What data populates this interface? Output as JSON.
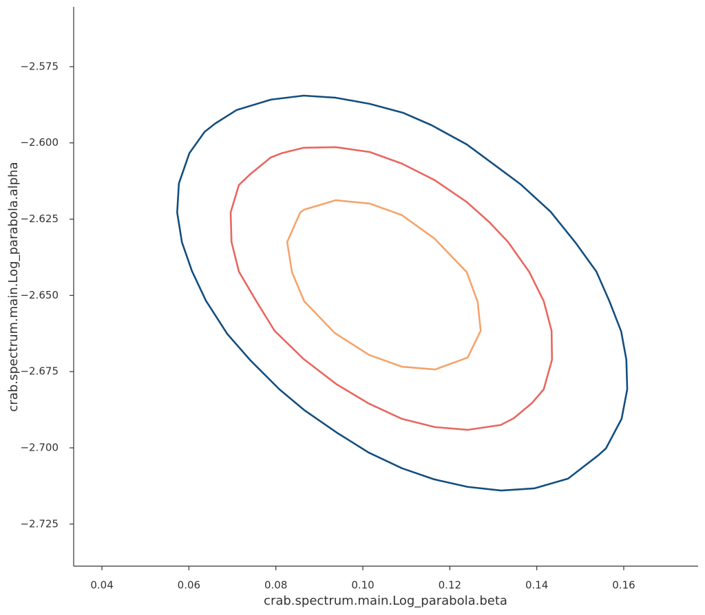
{
  "chart_data": {
    "type": "line",
    "xlabel": "crab.spectrum.main.Log_parabola.beta",
    "ylabel": "crab.spectrum.main.Log_parabola.alpha",
    "xlim": [
      0.0335,
      0.1771
    ],
    "ylim": [
      -2.7388,
      -2.5554
    ],
    "xticks": [
      0.04,
      0.06,
      0.08,
      {
        "value": 0.1,
        "label": "0.10"
      },
      0.12,
      0.14,
      0.16
    ],
    "yticks": [
      {
        "value": -2.725,
        "label": "−2.725"
      },
      {
        "value": -2.7,
        "label": "−2.700"
      },
      {
        "value": -2.675,
        "label": "−2.675"
      },
      {
        "value": -2.65,
        "label": "−2.650"
      },
      {
        "value": -2.625,
        "label": "−2.625"
      },
      {
        "value": -2.6,
        "label": "−2.600"
      },
      {
        "value": -2.575,
        "label": "−2.575"
      }
    ],
    "grid": false,
    "closed": true,
    "series": [
      {
        "color": "#124e7f",
        "x": [
          0.0864,
          0.0938,
          0.1016,
          0.1092,
          0.1158,
          0.1239,
          0.1312,
          0.1363,
          0.1432,
          0.1489,
          0.1537,
          0.1567,
          0.1594,
          0.1606,
          0.1608,
          0.1595,
          0.1559,
          0.1541,
          0.1472,
          0.1394,
          0.1318,
          0.1241,
          0.1163,
          0.109,
          0.1014,
          0.094,
          0.0865,
          0.0808,
          0.0742,
          0.0688,
          0.0639,
          0.0607,
          0.0584,
          0.0573,
          0.0577,
          0.0601,
          0.0636,
          0.066,
          0.071,
          0.0789
        ],
        "values": [
          -2.5845,
          -2.5852,
          -2.5872,
          -2.5901,
          -2.5942,
          -2.6005,
          -2.6082,
          -2.6136,
          -2.6226,
          -2.6327,
          -2.6422,
          -2.6519,
          -2.6618,
          -2.6711,
          -2.6808,
          -2.6905,
          -2.7002,
          -2.7025,
          -2.7101,
          -2.7133,
          -2.714,
          -2.7128,
          -2.7103,
          -2.7067,
          -2.7016,
          -2.695,
          -2.6876,
          -2.6808,
          -2.6714,
          -2.6626,
          -2.6517,
          -2.642,
          -2.6326,
          -2.6228,
          -2.6133,
          -2.6034,
          -2.5964,
          -2.5937,
          -2.5892,
          -2.5858
        ]
      },
      {
        "color": "#e8665f",
        "x": [
          0.0864,
          0.0938,
          0.1016,
          0.109,
          0.1165,
          0.1239,
          0.1291,
          0.1334,
          0.1383,
          0.1416,
          0.1434,
          0.1435,
          0.1416,
          0.1389,
          0.1347,
          0.1317,
          0.1241,
          0.1166,
          0.109,
          0.1014,
          0.094,
          0.0864,
          0.0797,
          0.0755,
          0.0715,
          0.0698,
          0.0696,
          0.0715,
          0.074,
          0.0788,
          0.0813
        ],
        "values": [
          -2.6016,
          -2.6014,
          -2.603,
          -2.6068,
          -2.6122,
          -2.6194,
          -2.626,
          -2.6325,
          -2.6424,
          -2.6519,
          -2.6616,
          -2.6711,
          -2.6808,
          -2.6853,
          -2.6903,
          -2.6925,
          -2.6941,
          -2.6932,
          -2.6905,
          -2.6855,
          -2.6792,
          -2.6709,
          -2.6616,
          -2.6519,
          -2.6422,
          -2.6325,
          -2.6228,
          -2.6138,
          -2.6104,
          -2.6048,
          -2.6034
        ]
      },
      {
        "color": "#f5a36b",
        "x": [
          0.0938,
          0.1016,
          0.109,
          0.1165,
          0.1239,
          0.1264,
          0.1271,
          0.1241,
          0.1166,
          0.109,
          0.1014,
          0.0935,
          0.0865,
          0.0837,
          0.0826,
          0.0856,
          0.0865
        ],
        "values": [
          -2.6188,
          -2.6199,
          -2.6237,
          -2.6314,
          -2.6424,
          -2.6521,
          -2.6616,
          -2.6704,
          -2.6743,
          -2.6734,
          -2.6695,
          -2.6623,
          -2.6519,
          -2.6424,
          -2.6325,
          -2.6228,
          -2.6219
        ]
      }
    ]
  }
}
